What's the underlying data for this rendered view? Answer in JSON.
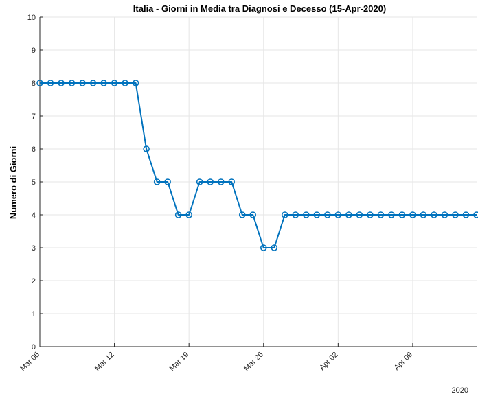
{
  "chart_data": {
    "type": "line",
    "title": "Italia - Giorni in Media tra Diagnosi e Decesso (15-Apr-2020)",
    "xlabel": "",
    "ylabel": "Numero di Giorni",
    "year_label": "2020",
    "x_start": "Mar 05",
    "x_end": "Apr 15",
    "x_tick_labels": [
      "Mar 05",
      "Mar 12",
      "Mar 19",
      "Mar 26",
      "Apr 02",
      "Apr 09"
    ],
    "y_ticks": [
      0,
      1,
      2,
      3,
      4,
      5,
      6,
      7,
      8,
      9,
      10
    ],
    "ylim": [
      0,
      10
    ],
    "grid": true,
    "line_color": "#0072BD",
    "marker": "circle",
    "series": [
      {
        "x": [
          "Mar 05",
          "Mar 06",
          "Mar 07",
          "Mar 08",
          "Mar 09",
          "Mar 10",
          "Mar 11",
          "Mar 12",
          "Mar 13",
          "Mar 14",
          "Mar 15",
          "Mar 16",
          "Mar 17",
          "Mar 18",
          "Mar 19",
          "Mar 20",
          "Mar 21",
          "Mar 22",
          "Mar 23",
          "Mar 24",
          "Mar 25",
          "Mar 26",
          "Mar 27",
          "Mar 28",
          "Mar 29",
          "Mar 30",
          "Mar 31",
          "Apr 01",
          "Apr 02",
          "Apr 03",
          "Apr 04",
          "Apr 05",
          "Apr 06",
          "Apr 07",
          "Apr 08",
          "Apr 09",
          "Apr 10",
          "Apr 11",
          "Apr 12",
          "Apr 13",
          "Apr 14",
          "Apr 15"
        ],
        "values": [
          8,
          8,
          8,
          8,
          8,
          8,
          8,
          8,
          8,
          8,
          6,
          5,
          5,
          4,
          4,
          5,
          5,
          5,
          5,
          4,
          4,
          3,
          3,
          4,
          4,
          4,
          4,
          4,
          4,
          4,
          4,
          4,
          4,
          4,
          4,
          4,
          4,
          4,
          4,
          4,
          4,
          4
        ]
      }
    ]
  }
}
